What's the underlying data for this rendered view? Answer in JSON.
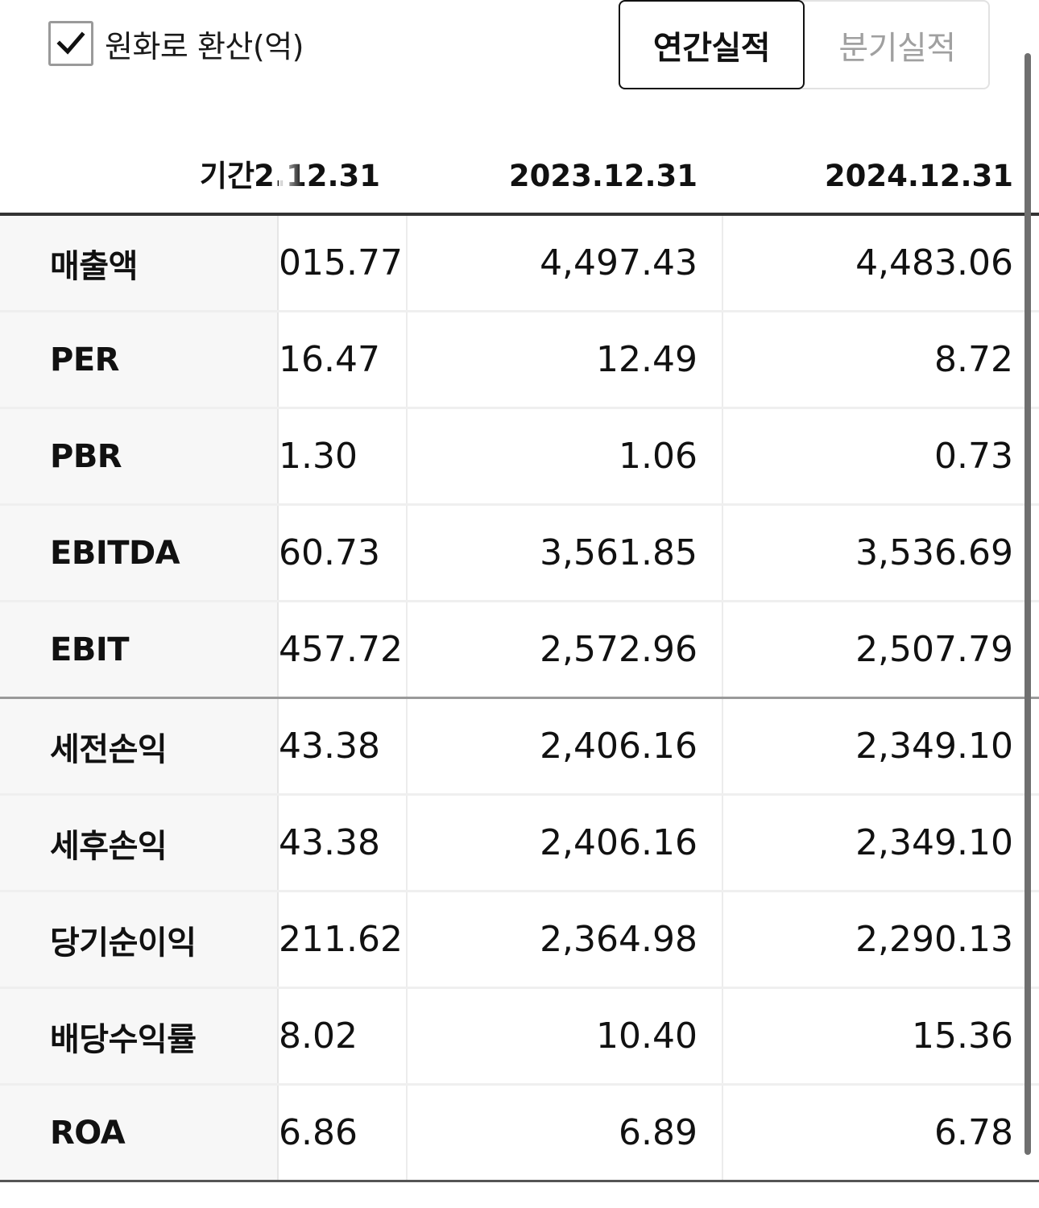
{
  "controls": {
    "convert_label": "원화로 환산(억)",
    "convert_checked": true,
    "tabs": [
      {
        "label": "연간실적",
        "active": true
      },
      {
        "label": "분기실적",
        "active": false
      }
    ]
  },
  "table": {
    "header": {
      "label": "기간",
      "columns": [
        "2.12.31",
        "2023.12.31",
        "2024.12.31"
      ]
    },
    "rows": [
      {
        "label": "매출액",
        "values": [
          "015.77",
          "4,497.43",
          "4,483.06"
        ]
      },
      {
        "label": "PER",
        "values": [
          "16.47",
          "12.49",
          "8.72"
        ]
      },
      {
        "label": "PBR",
        "values": [
          "1.30",
          "1.06",
          "0.73"
        ]
      },
      {
        "label": "EBITDA",
        "values": [
          "60.73",
          "3,561.85",
          "3,536.69"
        ]
      },
      {
        "label": "EBIT",
        "values": [
          "457.72",
          "2,572.96",
          "2,507.79"
        ]
      },
      {
        "label": "세전손익",
        "values": [
          "43.38",
          "2,406.16",
          "2,349.10"
        ]
      },
      {
        "label": "세후손익",
        "values": [
          "43.38",
          "2,406.16",
          "2,349.10"
        ]
      },
      {
        "label": "당기순이익",
        "values": [
          "211.62",
          "2,364.98",
          "2,290.13"
        ]
      },
      {
        "label": "배당수익률",
        "values": [
          "8.02",
          "10.40",
          "15.36"
        ]
      },
      {
        "label": "ROA",
        "values": [
          "6.86",
          "6.89",
          "6.78"
        ]
      }
    ]
  }
}
